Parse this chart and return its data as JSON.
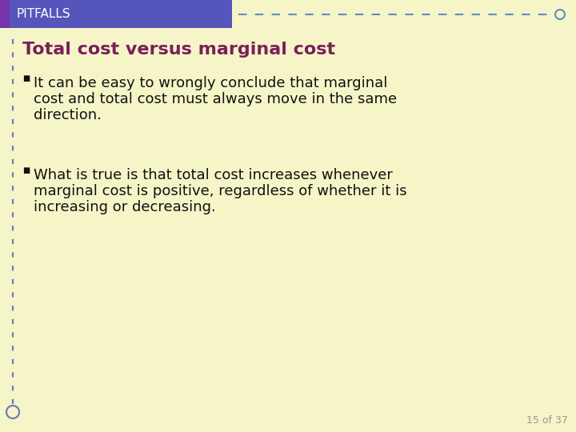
{
  "bg_color": "#f5f5c8",
  "header_bg_color": "#5555bb",
  "header_left_color": "#7733aa",
  "header_text": "PITFALLS",
  "header_text_color": "#ffffff",
  "header_font_size": 11,
  "title_text": "Total cost versus marginal cost",
  "title_color": "#7a1f5a",
  "title_font_size": 16,
  "bullet1_line1": "It can be easy to wrongly conclude that marginal",
  "bullet1_line2": "cost and total cost must always move in the same",
  "bullet1_line3": "direction.",
  "bullet2_line1": "What is true is that total cost increases whenever",
  "bullet2_line2": "marginal cost is positive, regardless of whether it is",
  "bullet2_line3": "increasing or decreasing.",
  "bullet_font_size": 13,
  "bullet_color": "#111111",
  "left_border_color": "#6677bb",
  "dashed_line_color": "#6688cc",
  "page_number": "15 of 37",
  "page_num_color": "#999999",
  "page_num_font_size": 9
}
